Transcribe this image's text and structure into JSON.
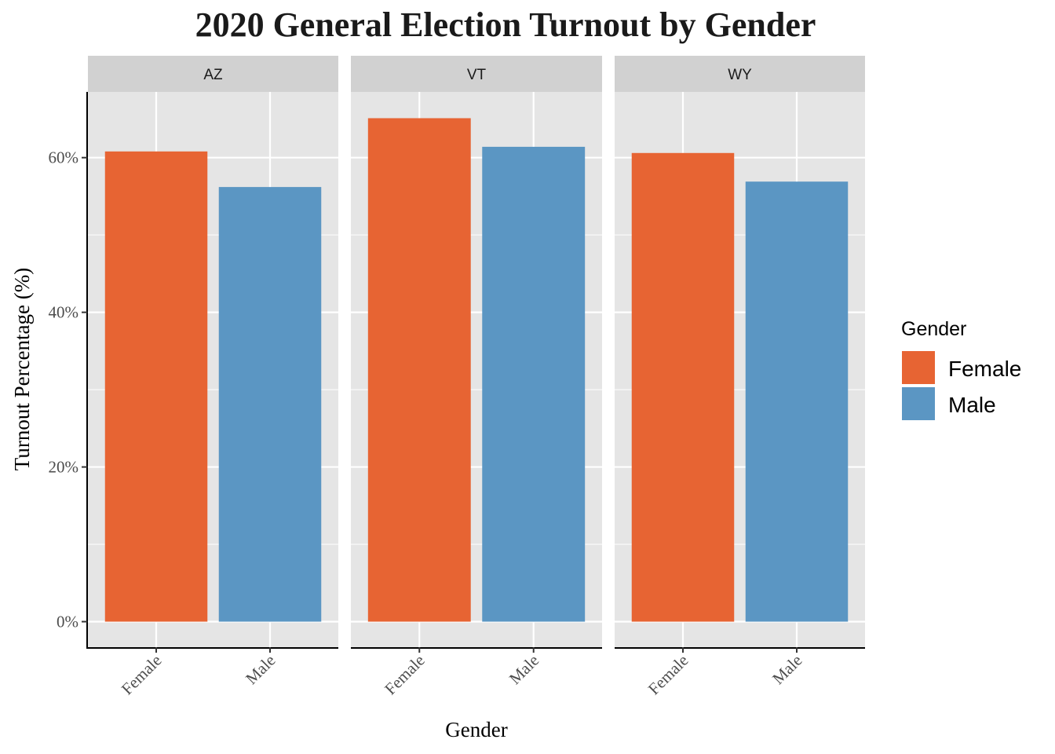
{
  "chart_data": {
    "type": "bar",
    "title": "2020 General Election Turnout by Gender",
    "xlabel": "Gender",
    "ylabel": "Turnout Percentage (%)",
    "ylim": [
      -3.3,
      68.5
    ],
    "yticks": [
      0,
      20,
      40,
      60
    ],
    "ytick_labels": [
      "0%",
      "20%",
      "40%",
      "60%"
    ],
    "categories": [
      "Female",
      "Male"
    ],
    "facets": [
      {
        "name": "AZ",
        "values": [
          60.8,
          56.2
        ]
      },
      {
        "name": "VT",
        "values": [
          65.1,
          61.4
        ]
      },
      {
        "name": "WY",
        "values": [
          60.6,
          56.9
        ]
      }
    ],
    "legend": {
      "title": "Gender",
      "position": "right",
      "entries": [
        {
          "label": "Female",
          "color": "#E76433"
        },
        {
          "label": "Male",
          "color": "#5B96C3"
        }
      ]
    },
    "colors": {
      "panel_bg": "#E5E5E5",
      "strip_bg": "#D1D1D1",
      "grid": "#FFFFFF"
    },
    "grid": true
  }
}
